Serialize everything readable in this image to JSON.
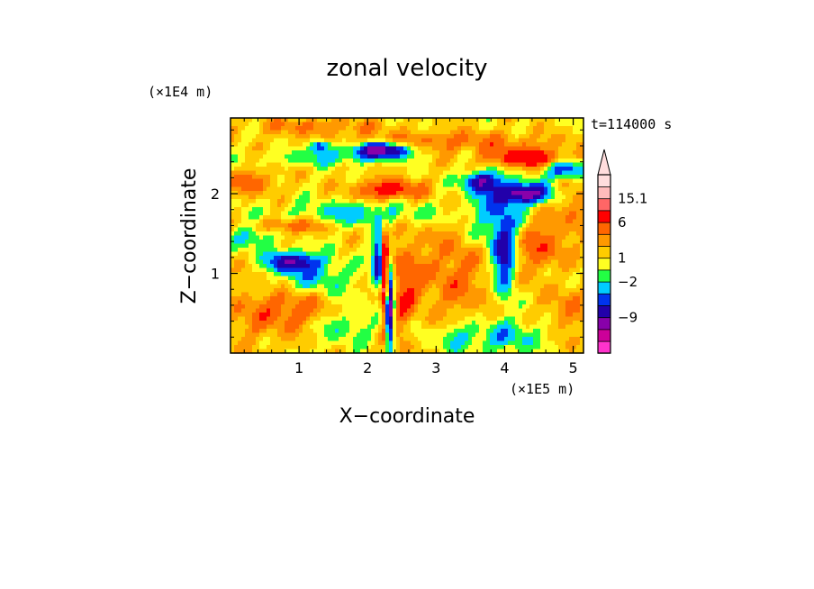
{
  "chart_data": {
    "type": "heatmap",
    "title": "zonal velocity",
    "xlabel": "X−coordinate",
    "ylabel": "Z−coordinate",
    "x_unit_label": "(×1E5 m)",
    "y_unit_label": "(×1E4 m)",
    "time_label": "t=114000 s",
    "xlim": [
      0,
      5.15
    ],
    "ylim": [
      0,
      2.95
    ],
    "x_ticks": [
      {
        "value": 1,
        "label": "1"
      },
      {
        "value": 2,
        "label": "2"
      },
      {
        "value": 3,
        "label": "3"
      },
      {
        "value": 4,
        "label": "4"
      },
      {
        "value": 5,
        "label": "5"
      }
    ],
    "y_ticks": [
      {
        "value": 1,
        "label": "1"
      },
      {
        "value": 2,
        "label": "2"
      }
    ],
    "colorbar": {
      "extend_max": true,
      "levels": [
        {
          "color": "#ff33cc"
        },
        {
          "color": "#cc0099"
        },
        {
          "color": "#8800aa"
        },
        {
          "color": "#2200aa"
        },
        {
          "color": "#0033ee"
        },
        {
          "color": "#00ccff"
        },
        {
          "color": "#22ff44"
        },
        {
          "color": "#ffff22"
        },
        {
          "color": "#ffcc00"
        },
        {
          "color": "#ff9900"
        },
        {
          "color": "#ff6600"
        },
        {
          "color": "#ff0000"
        },
        {
          "color": "#ff6666"
        },
        {
          "color": "#ffbbbb"
        },
        {
          "color": "#ffdddd"
        }
      ],
      "tick_labels": [
        {
          "label": "15.1",
          "level_edge": 13
        },
        {
          "label": "6",
          "level_edge": 11
        },
        {
          "label": "1",
          "level_edge": 8
        },
        {
          "label": "−2",
          "level_edge": 6
        },
        {
          "label": "−9",
          "level_edge": 3
        }
      ]
    },
    "field_features": [
      {
        "x": 3.0,
        "z": 2.65,
        "value": 3.5,
        "sx": 1.6,
        "sz": 0.13
      },
      {
        "x": 1.2,
        "z": 2.85,
        "value": 3,
        "sx": 0.9,
        "sz": 0.1
      },
      {
        "x": 1.4,
        "z": 2.45,
        "value": -3,
        "sx": 0.9,
        "sz": 0.1
      },
      {
        "x": 2.2,
        "z": 2.55,
        "value": -12,
        "sx": 0.45,
        "sz": 0.1
      },
      {
        "x": 1.3,
        "z": 2.6,
        "value": -8,
        "sx": 0.15,
        "sz": 0.08
      },
      {
        "x": 2.3,
        "z": 2.05,
        "value": 7,
        "sx": 0.45,
        "sz": 0.12
      },
      {
        "x": 1.9,
        "z": 1.75,
        "value": -4,
        "sx": 1.1,
        "sz": 0.15
      },
      {
        "x": 0.3,
        "z": 2.15,
        "value": 4,
        "sx": 0.35,
        "sz": 0.15
      },
      {
        "x": 0.9,
        "z": 1.6,
        "value": 5,
        "sx": 0.45,
        "sz": 0.1
      },
      {
        "x": 0.35,
        "z": 1.45,
        "value": -4,
        "sx": 0.3,
        "sz": 0.15
      },
      {
        "x": 0.9,
        "z": 1.15,
        "value": -9,
        "sx": 0.35,
        "sz": 0.12
      },
      {
        "x": 1.2,
        "z": 0.95,
        "value": -4,
        "sx": 0.6,
        "sz": 0.25
      },
      {
        "x": 0.4,
        "z": 0.5,
        "value": 2.5,
        "sx": 0.7,
        "sz": 0.4
      },
      {
        "x": 1.05,
        "z": 0.55,
        "value": 3.5,
        "sx": 0.5,
        "sz": 0.25
      },
      {
        "x": 1.6,
        "z": 0.35,
        "value": -3,
        "sx": 0.5,
        "sz": 0.25
      },
      {
        "x": 2.32,
        "z": 0.55,
        "value": -14,
        "sx": 0.07,
        "sz": 0.5
      },
      {
        "x": 2.25,
        "z": 0.9,
        "value": 12,
        "sx": 0.05,
        "sz": 0.6
      },
      {
        "x": 2.15,
        "z": 1.15,
        "value": -10,
        "sx": 0.08,
        "sz": 0.3
      },
      {
        "x": 2.55,
        "z": 0.7,
        "value": 5,
        "sx": 0.25,
        "sz": 0.7
      },
      {
        "x": 2.7,
        "z": 0.3,
        "value": -2.5,
        "sx": 0.2,
        "sz": 0.35
      },
      {
        "x": 3.3,
        "z": 1.0,
        "value": 3.5,
        "sx": 0.5,
        "sz": 0.6
      },
      {
        "x": 3.9,
        "z": 1.7,
        "value": -5,
        "sx": 0.4,
        "sz": 0.5
      },
      {
        "x": 3.65,
        "z": 2.15,
        "value": -9,
        "sx": 0.25,
        "sz": 0.12
      },
      {
        "x": 4.0,
        "z": 1.15,
        "value": -8,
        "sx": 0.15,
        "sz": 0.45
      },
      {
        "x": 4.3,
        "z": 2.0,
        "value": -11,
        "sx": 0.4,
        "sz": 0.12
      },
      {
        "x": 4.3,
        "z": 2.45,
        "value": 8,
        "sx": 0.55,
        "sz": 0.12
      },
      {
        "x": 4.9,
        "z": 2.3,
        "value": -8,
        "sx": 0.3,
        "sz": 0.12
      },
      {
        "x": 4.55,
        "z": 1.3,
        "value": 5,
        "sx": 0.4,
        "sz": 0.4
      },
      {
        "x": 4.9,
        "z": 0.6,
        "value": 3,
        "sx": 0.3,
        "sz": 0.4
      },
      {
        "x": 4.75,
        "z": 1.0,
        "value": -3,
        "sx": 0.25,
        "sz": 0.3
      },
      {
        "x": 4.0,
        "z": 0.2,
        "value": -4,
        "sx": 0.6,
        "sz": 0.2
      },
      {
        "x": 3.3,
        "z": 0.2,
        "value": -3,
        "sx": 0.25,
        "sz": 0.2
      },
      {
        "x": 5.0,
        "z": 1.9,
        "value": 3,
        "sx": 0.2,
        "sz": 0.3
      }
    ]
  }
}
